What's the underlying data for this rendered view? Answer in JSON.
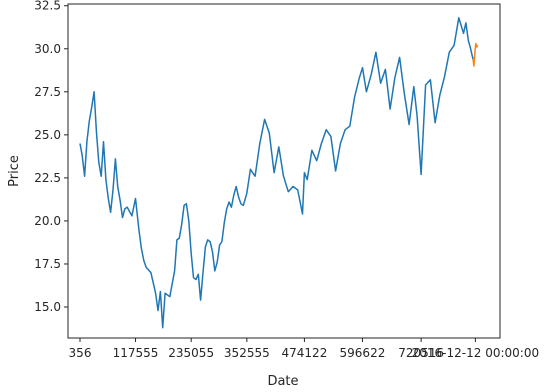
{
  "chart_data": {
    "type": "line",
    "xlabel": "Date",
    "ylabel": "Price",
    "xlim": [
      -25000,
      887000
    ],
    "ylim": [
      13.2,
      32.6
    ],
    "x_ticks": [
      {
        "value": 356,
        "label": "356"
      },
      {
        "value": 117555,
        "label": "117555"
      },
      {
        "value": 235055,
        "label": "235055"
      },
      {
        "value": 352555,
        "label": "352555"
      },
      {
        "value": 474122,
        "label": "474122"
      },
      {
        "value": 596622,
        "label": "596622"
      },
      {
        "value": 720516,
        "label": "720516"
      },
      {
        "value": 835000,
        "label": "2016-12-12 00:00:00"
      }
    ],
    "y_ticks": [
      15.0,
      17.5,
      20.0,
      22.5,
      25.0,
      27.5,
      30.0,
      32.5
    ],
    "y_tick_labels": [
      "15.0",
      "17.5",
      "20.0",
      "22.5",
      "25.0",
      "27.5",
      "30.0",
      "32.5"
    ],
    "colors": {
      "series_1": "#1f77b4",
      "series_2": "#ff7f0e",
      "axes": "#262626"
    },
    "series": [
      {
        "color": "#1f77b4",
        "x": [
          356,
          5000,
          10000,
          15000,
          20000,
          25000,
          30000,
          35000,
          40000,
          45000,
          50000,
          55000,
          60000,
          65000,
          70000,
          75000,
          80000,
          85000,
          90000,
          95000,
          100000,
          110000,
          117555,
          125000,
          130000,
          135000,
          140000,
          150000,
          160000,
          165000,
          170000,
          175000,
          180000,
          190000,
          200000,
          205000,
          210000,
          215000,
          220000,
          225000,
          230000,
          235055,
          240000,
          245000,
          250000,
          255000,
          260000,
          265000,
          270000,
          275000,
          280000,
          285000,
          290000,
          295000,
          300000,
          305000,
          310000,
          315000,
          320000,
          325000,
          330000,
          335000,
          340000,
          345000,
          352555,
          360000,
          370000,
          380000,
          390000,
          400000,
          410000,
          420000,
          430000,
          440000,
          450000,
          460000,
          470000,
          474122,
          480000,
          490000,
          500000,
          510000,
          520000,
          530000,
          540000,
          550000,
          560000,
          570000,
          580000,
          590000,
          596622,
          605000,
          615000,
          625000,
          635000,
          645000,
          655000,
          665000,
          675000,
          685000,
          695000,
          705000,
          712000,
          720516,
          730000,
          740000,
          750000,
          760000,
          770000,
          780000,
          790000,
          800000,
          810000,
          815000,
          820000,
          825000,
          830000
        ],
        "y": [
          24.5,
          23.8,
          22.6,
          24.6,
          25.8,
          26.6,
          27.5,
          25.2,
          23.4,
          22.6,
          24.6,
          22.4,
          21.3,
          20.5,
          21.8,
          23.6,
          22.0,
          21.2,
          20.2,
          20.7,
          20.8,
          20.3,
          21.3,
          19.4,
          18.4,
          17.7,
          17.3,
          17.0,
          15.8,
          14.8,
          15.9,
          13.8,
          15.8,
          15.6,
          17.1,
          18.9,
          19.0,
          19.8,
          20.9,
          21.0,
          20.0,
          18.1,
          16.7,
          16.6,
          16.9,
          15.4,
          17.0,
          18.5,
          18.9,
          18.8,
          18.2,
          17.1,
          17.6,
          18.6,
          18.8,
          19.9,
          20.7,
          21.1,
          20.8,
          21.5,
          22.0,
          21.4,
          21.0,
          20.9,
          21.6,
          23.0,
          22.6,
          24.5,
          25.9,
          25.1,
          22.8,
          24.3,
          22.6,
          21.7,
          22.0,
          21.8,
          20.4,
          22.8,
          22.4,
          24.1,
          23.5,
          24.5,
          25.3,
          24.9,
          22.9,
          24.5,
          25.3,
          25.5,
          27.2,
          28.3,
          28.9,
          27.5,
          28.5,
          29.8,
          28.0,
          28.8,
          26.5,
          28.3,
          29.5,
          27.4,
          25.6,
          27.8,
          26.1,
          22.7,
          27.9,
          28.2,
          25.7,
          27.3,
          28.4,
          29.8,
          30.2,
          31.8,
          30.9,
          31.5,
          30.5,
          30.0,
          29.4
        ]
      },
      {
        "color": "#ff7f0e",
        "x": [
          830000,
          832000,
          834000,
          836000,
          838000,
          840000
        ],
        "y": [
          29.4,
          29.0,
          29.8,
          30.3,
          30.1,
          30.2
        ]
      }
    ]
  }
}
